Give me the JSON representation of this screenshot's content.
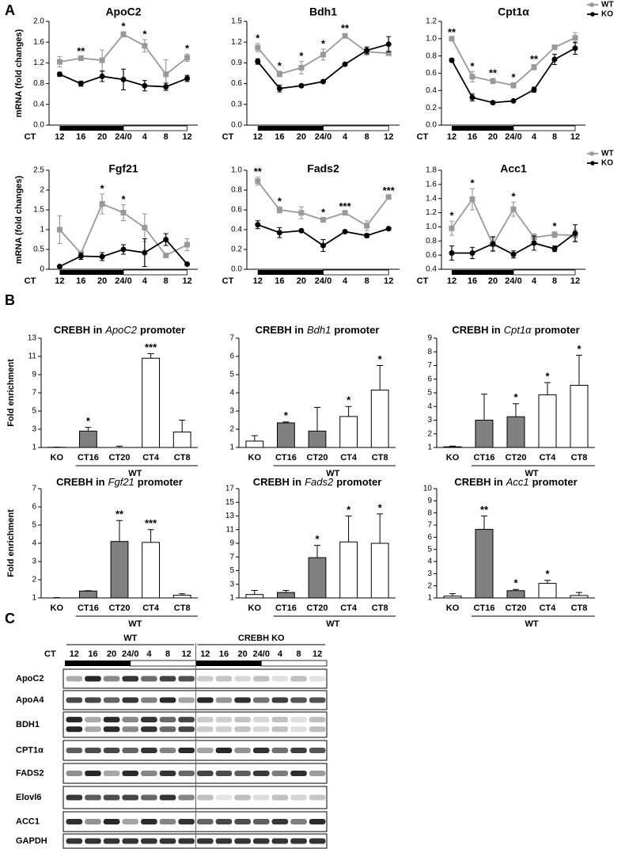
{
  "panel_labels": [
    "A",
    "B",
    "C"
  ],
  "chart_data": [
    {
      "type": "line",
      "title": "ApoC2",
      "y_label": "mRNA (fold changes)",
      "x_label": "CT",
      "categories": [
        "12",
        "16",
        "20",
        "24/0",
        "4",
        "8",
        "12"
      ],
      "ylim": [
        0,
        2
      ],
      "yticks": [
        {
          "value": 0,
          "label": "0.0"
        },
        0.4,
        0.8,
        1.2,
        1.6,
        {
          "value": 2,
          "label": "2.0"
        }
      ],
      "series": [
        {
          "name": "WT",
          "color": "#999999",
          "marker": "square",
          "values": [
            1.22,
            1.29,
            1.25,
            1.75,
            1.53,
            0.98,
            1.3
          ],
          "errors": [
            0.1,
            0.03,
            0.2,
            0.05,
            0.12,
            0.28,
            0.07
          ]
        },
        {
          "name": "KO",
          "color": "#000000",
          "marker": "circle",
          "values": [
            0.98,
            0.8,
            0.94,
            0.88,
            0.76,
            0.74,
            0.9
          ],
          "errors": [
            0.04,
            0.05,
            0.1,
            0.2,
            0.1,
            0.07,
            0.06
          ]
        }
      ],
      "star_labels": [
        null,
        "**",
        null,
        "*",
        "*",
        null,
        "*"
      ],
      "legend": false
    },
    {
      "type": "line",
      "title": "Bdh1",
      "x_label": "CT",
      "categories": [
        "12",
        "16",
        "20",
        "24/0",
        "4",
        "8",
        "12"
      ],
      "ylim": [
        0,
        1.5
      ],
      "yticks": [
        {
          "value": 0,
          "label": "0.0"
        },
        0.3,
        0.6,
        0.9,
        1.2,
        1.5
      ],
      "series": [
        {
          "name": "WT",
          "color": "#999999",
          "marker": "square",
          "values": [
            1.12,
            0.74,
            0.83,
            1.02,
            1.29,
            1.06,
            1.04
          ],
          "errors": [
            0.06,
            0.04,
            0.09,
            0.08,
            0.03,
            0.05,
            0.03
          ]
        },
        {
          "name": "KO",
          "color": "#000000",
          "marker": "circle",
          "values": [
            0.92,
            0.53,
            0.57,
            0.63,
            0.88,
            1.08,
            1.17
          ],
          "errors": [
            0.04,
            0.05,
            0.02,
            0.02,
            0.01,
            0.05,
            0.11
          ]
        }
      ],
      "star_labels": [
        "*",
        "*",
        "*",
        "*",
        "**",
        null,
        null
      ],
      "legend": false
    },
    {
      "type": "line",
      "title": "Cpt1α",
      "x_label": "CT",
      "categories": [
        "12",
        "16",
        "20",
        "24/0",
        "4",
        "8",
        "12"
      ],
      "ylim": [
        0,
        1.2
      ],
      "yticks": [
        {
          "value": 0,
          "label": "0.0"
        },
        0.2,
        0.4,
        0.6,
        0.8,
        {
          "value": 1,
          "label": "1.0"
        },
        1.2
      ],
      "series": [
        {
          "name": "WT",
          "color": "#999999",
          "marker": "square",
          "values": [
            1.0,
            0.56,
            0.51,
            0.46,
            0.67,
            0.9,
            1.01
          ],
          "errors": [
            0.01,
            0.06,
            0.03,
            0.03,
            0.03,
            0.02,
            0.06
          ]
        },
        {
          "name": "KO",
          "color": "#000000",
          "marker": "circle",
          "values": [
            0.75,
            0.32,
            0.26,
            0.28,
            0.41,
            0.76,
            0.89
          ],
          "errors": [
            0.02,
            0.04,
            0.01,
            0.01,
            0.03,
            0.06,
            0.07
          ]
        }
      ],
      "star_labels": [
        "**",
        "*",
        "**",
        "*",
        "**",
        null,
        null
      ],
      "legend": true
    },
    {
      "type": "line",
      "title": "Fgf21",
      "y_label": "mRNA (fold changes)",
      "x_label": "CT",
      "categories": [
        "12",
        "16",
        "20",
        "24/0",
        "4",
        "8",
        "12"
      ],
      "ylim": [
        0,
        2.5
      ],
      "yticks": [
        0,
        0.5,
        1,
        1.5,
        2,
        2.5
      ],
      "series": [
        {
          "name": "WT",
          "color": "#999999",
          "marker": "square",
          "values": [
            1.0,
            0.4,
            1.65,
            1.43,
            1.05,
            0.35,
            0.62
          ],
          "errors": [
            0.35,
            0.05,
            0.25,
            0.2,
            0.35,
            0.02,
            0.15
          ]
        },
        {
          "name": "KO",
          "color": "#000000",
          "marker": "circle",
          "values": [
            0.07,
            0.33,
            0.32,
            0.5,
            0.42,
            0.75,
            0.13
          ],
          "errors": [
            0.02,
            0.08,
            0.1,
            0.12,
            0.35,
            0.15,
            0.03
          ]
        }
      ],
      "star_labels": [
        null,
        null,
        "*",
        "*",
        null,
        null,
        null
      ],
      "legend": false
    },
    {
      "type": "line",
      "title": "Fads2",
      "x_label": "CT",
      "categories": [
        "12",
        "16",
        "20",
        "24/0",
        "4",
        "8",
        "12"
      ],
      "ylim": [
        0,
        1
      ],
      "yticks": [
        {
          "value": 0,
          "label": "0.0"
        },
        0.2,
        0.4,
        0.6,
        0.8,
        {
          "value": 1,
          "label": "1.0"
        }
      ],
      "series": [
        {
          "name": "WT",
          "color": "#999999",
          "marker": "square",
          "values": [
            0.89,
            0.6,
            0.57,
            0.5,
            0.57,
            0.44,
            0.73
          ],
          "errors": [
            0.04,
            0.03,
            0.06,
            0.02,
            0.01,
            0.05,
            0.01
          ]
        },
        {
          "name": "KO",
          "color": "#000000",
          "marker": "circle",
          "values": [
            0.45,
            0.37,
            0.39,
            0.24,
            0.38,
            0.34,
            0.41
          ],
          "errors": [
            0.04,
            0.05,
            0.01,
            0.06,
            0.01,
            0.02,
            0.01
          ]
        }
      ],
      "star_labels": [
        "**",
        "*",
        null,
        "*",
        "***",
        null,
        "***"
      ],
      "legend": false
    },
    {
      "type": "line",
      "title": "Acc1",
      "x_label": "CT",
      "categories": [
        "12",
        "16",
        "20",
        "24/0",
        "4",
        "8",
        "12"
      ],
      "ylim": [
        0.4,
        1.8
      ],
      "yticks": [
        0.4,
        0.6,
        0.8,
        {
          "value": 1,
          "label": "1.0"
        },
        1.2,
        1.4,
        1.6,
        1.8
      ],
      "series": [
        {
          "name": "WT",
          "color": "#999999",
          "marker": "square",
          "values": [
            0.98,
            1.39,
            0.75,
            1.25,
            0.85,
            0.89,
            0.88
          ],
          "errors": [
            0.1,
            0.15,
            0.1,
            0.1,
            0.05,
            0.04,
            0.08
          ]
        },
        {
          "name": "KO",
          "color": "#000000",
          "marker": "circle",
          "values": [
            0.63,
            0.63,
            0.76,
            0.61,
            0.77,
            0.69,
            0.91
          ],
          "errors": [
            0.1,
            0.08,
            0.1,
            0.05,
            0.1,
            0.04,
            0.12
          ]
        }
      ],
      "star_labels": [
        "*",
        "*",
        null,
        "*",
        null,
        "*",
        null
      ],
      "legend": true
    },
    {
      "type": "bar",
      "title": {
        "prefix": "CREBH in",
        "gene": "ApoC2",
        "suffix": "promoter"
      },
      "y_label": "Fold enrichment",
      "categories": [
        "KO",
        "CT16",
        "CT20",
        "CT4",
        "CT8"
      ],
      "group_label": "WT",
      "colors": [
        "#ffffff",
        "#808080",
        "#808080",
        "#ffffff",
        "#ffffff"
      ],
      "values": [
        1.02,
        2.8,
        1.0,
        10.8,
        2.7
      ],
      "errors": [
        0.02,
        0.4,
        0.15,
        0.5,
        1.3
      ],
      "star_labels": [
        null,
        "*",
        null,
        "***",
        null
      ],
      "ylim": [
        1,
        13
      ],
      "yticks": [
        1,
        3,
        5,
        7,
        9,
        11,
        13
      ]
    },
    {
      "type": "bar",
      "title": {
        "prefix": "CREBH in",
        "gene": "Bdh1",
        "suffix": "promoter"
      },
      "categories": [
        "KO",
        "CT16",
        "CT20",
        "CT4",
        "CT8"
      ],
      "group_label": "WT",
      "colors": [
        "#ffffff",
        "#808080",
        "#808080",
        "#ffffff",
        "#ffffff"
      ],
      "values": [
        1.35,
        2.35,
        1.9,
        2.7,
        4.15
      ],
      "errors": [
        0.3,
        0.05,
        1.3,
        0.55,
        1.35
      ],
      "star_labels": [
        null,
        "*",
        null,
        "*",
        "*"
      ],
      "ylim": [
        1,
        7
      ],
      "yticks": [
        1,
        2,
        3,
        4,
        5,
        6,
        7
      ]
    },
    {
      "type": "bar",
      "title": {
        "prefix": "CREBH in",
        "gene": "Cpt1α",
        "suffix": "promoter"
      },
      "categories": [
        "KO",
        "CT16",
        "CT20",
        "CT4",
        "CT8"
      ],
      "group_label": "WT",
      "colors": [
        "#ffffff",
        "#808080",
        "#808080",
        "#ffffff",
        "#ffffff"
      ],
      "values": [
        1.05,
        3.0,
        3.25,
        4.85,
        5.55
      ],
      "errors": [
        0.05,
        1.9,
        0.95,
        0.9,
        2.2
      ],
      "star_labels": [
        null,
        null,
        "*",
        "*",
        "*"
      ],
      "ylim": [
        1,
        9
      ],
      "yticks": [
        1,
        2,
        3,
        4,
        5,
        6,
        7,
        8,
        9
      ]
    },
    {
      "type": "bar",
      "title": {
        "prefix": "CREBH in",
        "gene": "Fgf21",
        "suffix": "promoter"
      },
      "y_label": "Fold enrichment",
      "categories": [
        "KO",
        "CT16",
        "CT20",
        "CT4",
        "CT8"
      ],
      "group_label": "WT",
      "colors": [
        "#ffffff",
        "#808080",
        "#808080",
        "#ffffff",
        "#ffffff"
      ],
      "values": [
        1.0,
        1.38,
        4.1,
        4.05,
        1.15
      ],
      "errors": [
        0.02,
        0.02,
        1.15,
        0.7,
        0.08
      ],
      "star_labels": [
        null,
        null,
        "**",
        "***",
        null
      ],
      "ylim": [
        1,
        7
      ],
      "yticks": [
        1,
        2,
        3,
        4,
        5,
        6,
        7
      ]
    },
    {
      "type": "bar",
      "title": {
        "prefix": "CREBH in",
        "gene": "Fads2",
        "suffix": "promoter"
      },
      "categories": [
        "KO",
        "CT16",
        "CT20",
        "CT4",
        "CT8"
      ],
      "group_label": "WT",
      "colors": [
        "#ffffff",
        "#808080",
        "#808080",
        "#ffffff",
        "#ffffff"
      ],
      "values": [
        1.5,
        1.8,
        6.9,
        9.2,
        9.0
      ],
      "errors": [
        0.6,
        0.3,
        1.8,
        3.8,
        4.3
      ],
      "star_labels": [
        null,
        null,
        "*",
        "*",
        "*"
      ],
      "ylim": [
        1,
        17
      ],
      "yticks": [
        1,
        3,
        5,
        7,
        9,
        11,
        13,
        15,
        17
      ]
    },
    {
      "type": "bar",
      "title": {
        "prefix": "CREBH in",
        "gene": "Acc1",
        "suffix": "promoter"
      },
      "categories": [
        "KO",
        "CT16",
        "CT20",
        "CT4",
        "CT8"
      ],
      "group_label": "WT",
      "colors": [
        "#ffffff",
        "#808080",
        "#808080",
        "#ffffff",
        "#ffffff"
      ],
      "values": [
        1.15,
        6.65,
        1.6,
        2.2,
        1.2
      ],
      "errors": [
        0.2,
        1.1,
        0.1,
        0.25,
        0.25
      ],
      "star_labels": [
        null,
        "**",
        "*",
        "*",
        null
      ],
      "ylim": [
        1,
        10
      ],
      "yticks": [
        1,
        2,
        3,
        4,
        5,
        6,
        7,
        8,
        9,
        10
      ]
    }
  ],
  "blot": {
    "groups": [
      "WT",
      "CREBH KO"
    ],
    "time_label": "CT",
    "timepoints": [
      "12",
      "16",
      "20",
      "24/0",
      "4",
      "8",
      "12",
      "12",
      "16",
      "20",
      "24/0",
      "4",
      "8",
      "12"
    ],
    "proteins": [
      "ApoC2",
      "ApoA4",
      "BDH1",
      "CPT1α",
      "FADS2",
      "Elovl6",
      "ACC1",
      "GAPDH"
    ]
  }
}
